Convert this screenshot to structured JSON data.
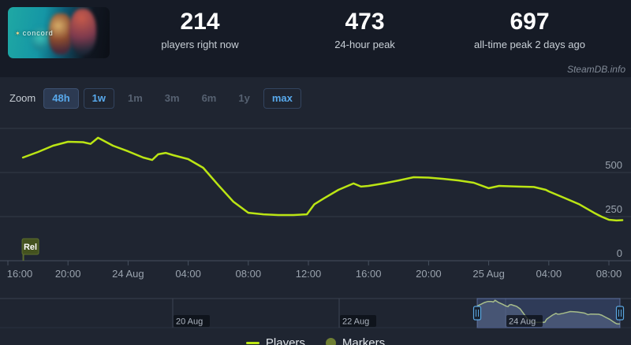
{
  "header": {
    "game": {
      "name": "Concord",
      "logo_text": "concord",
      "logo_star": "✶"
    },
    "stats": [
      {
        "value": "214",
        "label": "players right now"
      },
      {
        "value": "473",
        "label": "24-hour peak"
      },
      {
        "value": "697",
        "label": "all-time peak 2 days ago"
      }
    ],
    "watermark": "SteamDB.info"
  },
  "zoom": {
    "label": "Zoom",
    "buttons": [
      {
        "label": "48h",
        "state": "active"
      },
      {
        "label": "1w",
        "state": "enabled"
      },
      {
        "label": "1m",
        "state": "disabled"
      },
      {
        "label": "3m",
        "state": "disabled"
      },
      {
        "label": "6m",
        "state": "disabled"
      },
      {
        "label": "1y",
        "state": "disabled"
      },
      {
        "label": "max",
        "state": "enabled"
      }
    ]
  },
  "legend": [
    {
      "label": "Players",
      "swatch": "line",
      "color": "#bbe514"
    },
    {
      "label": "Markers",
      "swatch": "dot",
      "color": "#6f7f33"
    }
  ],
  "colors": {
    "accent_blue": "#58a9ec",
    "line_green": "#bbe514",
    "marker_olive": "#6f7f33",
    "rel_flag_bg": "#44521f",
    "panel_bg": "#1f2531",
    "header_bg": "#161b26"
  },
  "chart_data": {
    "type": "line",
    "title": "Concord concurrent players (48h view)",
    "xlabel": "",
    "ylabel": "Players",
    "ylim": [
      0,
      780
    ],
    "grid": "horizontal-only",
    "legend_position": "bottom-center",
    "x_unit": "hours after first axis tick (16:00)",
    "x_ticks": {
      "t": [
        0,
        4,
        8,
        12,
        16,
        20,
        24,
        28,
        32,
        36,
        40
      ],
      "labels": [
        "16:00",
        "20:00",
        "24 Aug",
        "04:00",
        "08:00",
        "12:00",
        "16:00",
        "20:00",
        "25 Aug",
        "04:00",
        "08:00"
      ]
    },
    "y_ticks": {
      "values": [
        0,
        250,
        500
      ],
      "labels": [
        "0",
        "250",
        "500"
      ]
    },
    "y_gridlines": [
      0,
      250,
      500,
      750
    ],
    "series": [
      {
        "name": "Players",
        "color": "#bbe514",
        "points": [
          [
            1,
            585
          ],
          [
            2,
            616
          ],
          [
            3,
            652
          ],
          [
            4,
            674
          ],
          [
            5,
            672
          ],
          [
            5.5,
            662
          ],
          [
            6,
            697
          ],
          [
            7,
            652
          ],
          [
            8,
            620
          ],
          [
            9,
            585
          ],
          [
            9.6,
            571
          ],
          [
            10,
            603
          ],
          [
            10.5,
            611
          ],
          [
            11,
            598
          ],
          [
            12,
            576
          ],
          [
            13,
            527
          ],
          [
            14,
            429
          ],
          [
            15,
            335
          ],
          [
            16,
            272
          ],
          [
            17,
            263
          ],
          [
            18,
            259
          ],
          [
            19,
            259
          ],
          [
            19.9,
            263
          ],
          [
            20.4,
            320
          ],
          [
            21,
            352
          ],
          [
            22,
            402
          ],
          [
            23,
            438
          ],
          [
            23.5,
            420
          ],
          [
            24,
            424
          ],
          [
            25,
            438
          ],
          [
            26,
            455
          ],
          [
            27,
            473
          ],
          [
            28,
            471
          ],
          [
            29,
            464
          ],
          [
            30,
            455
          ],
          [
            31,
            442
          ],
          [
            32,
            411
          ],
          [
            32.7,
            424
          ],
          [
            34,
            420
          ],
          [
            35,
            418
          ],
          [
            35.8,
            402
          ],
          [
            36,
            393
          ],
          [
            37,
            357
          ],
          [
            38,
            321
          ],
          [
            39,
            272
          ],
          [
            39.5,
            250
          ],
          [
            40,
            232
          ],
          [
            40.5,
            228
          ],
          [
            40.9,
            230
          ]
        ]
      }
    ],
    "markers": [
      {
        "label": "Rel",
        "t": 1
      }
    ],
    "navigator": {
      "gridline_labels": [
        "20 Aug",
        "22 Aug",
        "24 Aug"
      ],
      "selected_range": "last 48 hours"
    }
  }
}
